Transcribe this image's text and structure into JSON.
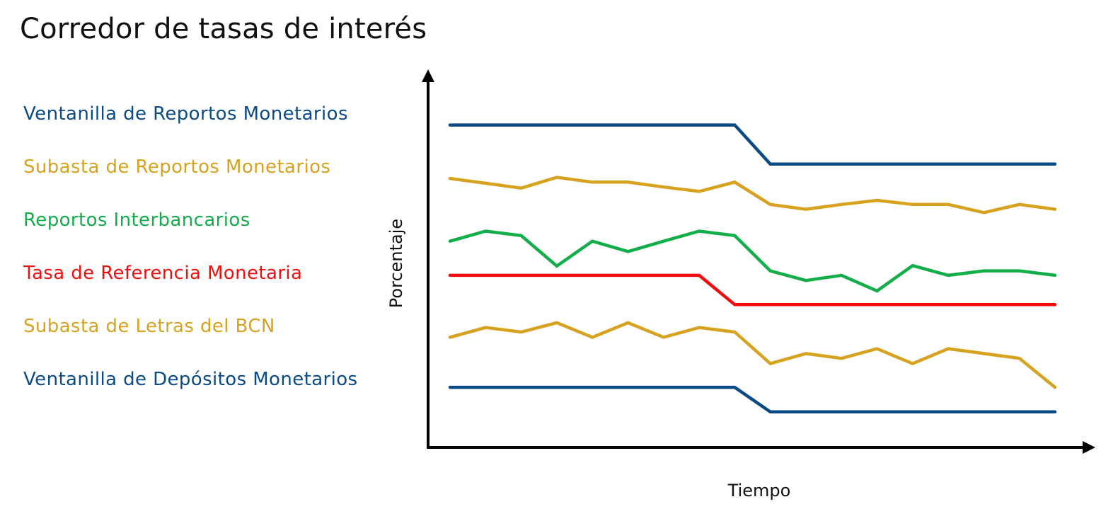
{
  "title": "Corredor de tasas de interés",
  "legend": [
    {
      "label": "Ventanilla de Reportos Monetarios",
      "color": "#0b4a84"
    },
    {
      "label": "Subasta de Reportos Monetarios",
      "color": "#d6a21f"
    },
    {
      "label": "Reportos Interbancarios",
      "color": "#13ad4a"
    },
    {
      "label": "Tasa de Referencia Monetaria",
      "color": "#f20d0d"
    },
    {
      "label": "Subasta de Letras del BCN",
      "color": "#d6a21f"
    },
    {
      "label": "Ventanilla de Depósitos Monetarios",
      "color": "#0b4a84"
    }
  ],
  "chart_data": {
    "type": "line",
    "title": "Corredor de tasas de interés",
    "xlabel": "Tiempo",
    "ylabel": "Porcentaje",
    "x": [
      1,
      2,
      3,
      4,
      5,
      6,
      7,
      8,
      9,
      10,
      11,
      12,
      13,
      14,
      15,
      16,
      17,
      18
    ],
    "ylim": [
      0,
      100
    ],
    "grid": false,
    "legend_position": "left",
    "series": [
      {
        "name": "Ventanilla de Reportos Monetarios",
        "color": "#0b4a84",
        "x": [
          1,
          9,
          10,
          18
        ],
        "values": [
          86.9,
          86.9,
          76.4,
          76.4
        ]
      },
      {
        "name": "Subasta de Reportos Monetarios",
        "color": "#d6a21f",
        "values": [
          72.5,
          71.2,
          69.9,
          72.8,
          71.5,
          71.5,
          70.2,
          69.0,
          71.5,
          65.5,
          64.2,
          65.5,
          66.6,
          65.5,
          65.5,
          63.3,
          65.5,
          64.2
        ]
      },
      {
        "name": "Reportos Interbancarios",
        "color": "#13ad4a",
        "values": [
          55.6,
          58.3,
          57.1,
          48.9,
          55.6,
          52.8,
          55.6,
          58.3,
          57.1,
          47.6,
          45.0,
          46.4,
          42.2,
          49.0,
          46.4,
          47.6,
          47.6,
          46.4
        ]
      },
      {
        "name": "Tasa de Referencia Monetaria",
        "color": "#f20d0d",
        "x": [
          1,
          8,
          9,
          18
        ],
        "values": [
          46.4,
          46.4,
          38.5,
          38.5
        ]
      },
      {
        "name": "Subasta de Letras del BCN",
        "color": "#d6a21f",
        "values": [
          29.7,
          32.3,
          31.1,
          33.6,
          29.7,
          33.6,
          29.7,
          32.3,
          31.1,
          22.6,
          25.3,
          24.0,
          26.6,
          22.6,
          26.6,
          25.3,
          24.0,
          16.2
        ]
      },
      {
        "name": "Ventanilla de Depósitos Monetarios",
        "color": "#0b4a84",
        "x": [
          1,
          9,
          10,
          18
        ],
        "values": [
          16.2,
          16.2,
          9.6,
          9.6
        ]
      }
    ]
  }
}
